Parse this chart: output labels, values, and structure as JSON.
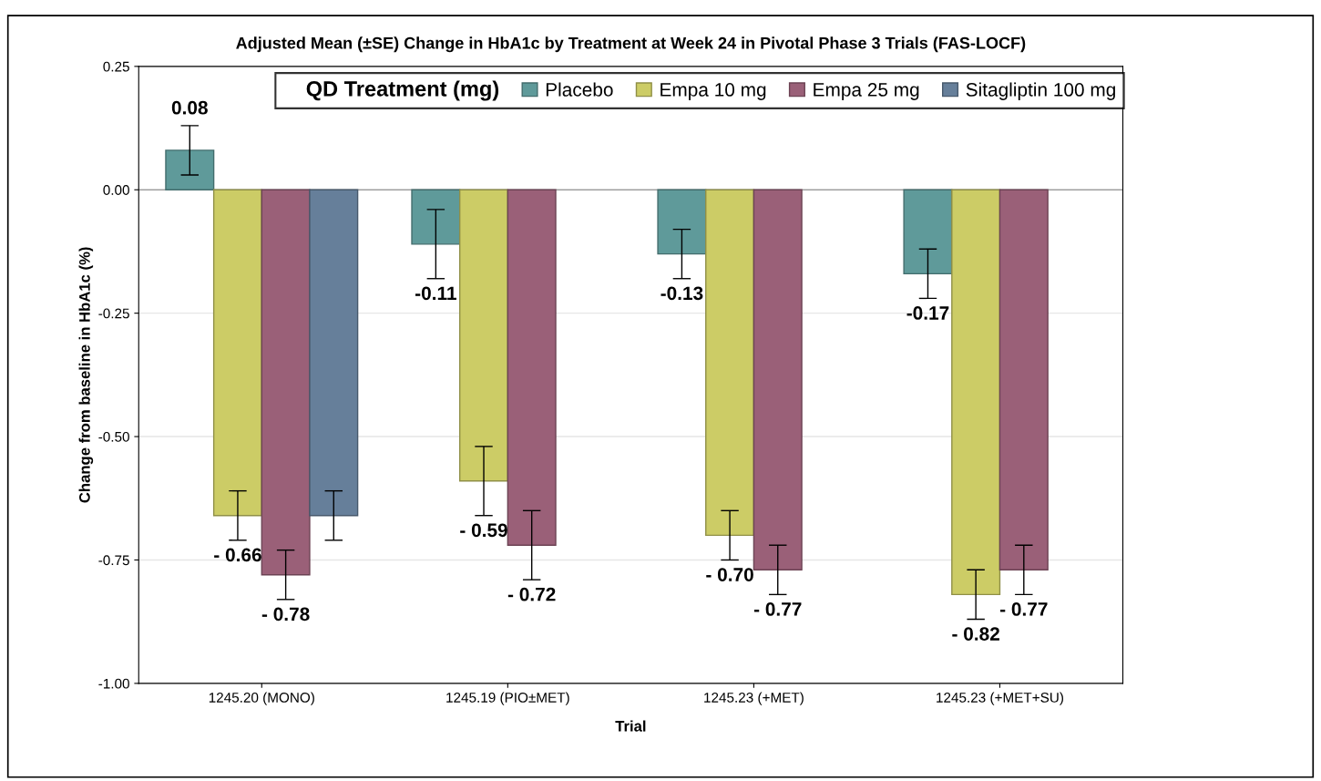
{
  "chart_data": {
    "type": "bar",
    "title": "Adjusted Mean (±SE) Change in HbA1c by Treatment at Week 24 in Pivotal Phase 3 Trials (FAS-LOCF)",
    "xlabel": "Trial",
    "ylabel": "Change from baseline in HbA1c (%)",
    "legend_title": "QD Treatment (mg)",
    "categories": [
      "1245.20 (MONO)",
      "1245.19 (PIO±MET)",
      "1245.23 (+MET)",
      "1245.23 (+MET+SU)"
    ],
    "series": [
      {
        "name": "Placebo",
        "color": "#5f9a9a",
        "values": [
          0.08,
          -0.11,
          -0.13,
          -0.17
        ],
        "errors": [
          0.05,
          0.07,
          0.05,
          0.05
        ],
        "value_labels": [
          "0.08",
          "-0.11",
          "-0.13",
          "-0.17"
        ]
      },
      {
        "name": "Empa 10 mg",
        "color": "#cccc66",
        "values": [
          -0.66,
          -0.59,
          -0.7,
          -0.82
        ],
        "errors": [
          0.05,
          0.07,
          0.05,
          0.05
        ],
        "value_labels": [
          "- 0.66",
          "- 0.59",
          "- 0.70",
          "- 0.82"
        ]
      },
      {
        "name": "Empa 25 mg",
        "color": "#9a6078",
        "values": [
          -0.78,
          -0.72,
          -0.77,
          -0.77
        ],
        "errors": [
          0.05,
          0.07,
          0.05,
          0.05
        ],
        "value_labels": [
          "- 0.78",
          "- 0.72",
          "- 0.77",
          "- 0.77"
        ]
      },
      {
        "name": "Sitagliptin 100 mg",
        "color": "#667f9a",
        "values": [
          -0.66,
          null,
          null,
          null
        ],
        "errors": [
          0.05,
          null,
          null,
          null
        ]
      }
    ],
    "ylim": [
      -1.0,
      0.25
    ],
    "yticks": [
      {
        "value": -1.0,
        "label": "-1.00"
      },
      {
        "value": -0.75,
        "label": "-0.75"
      },
      {
        "value": -0.5,
        "label": "-0.50"
      },
      {
        "value": -0.25,
        "label": "-0.25"
      },
      {
        "value": 0.0,
        "label": "0.00"
      },
      {
        "value": 0.25,
        "label": "0.25"
      }
    ],
    "ref_lines": [
      {
        "axis": "y",
        "value": 0,
        "color": "#808080"
      }
    ],
    "grid": "y",
    "legend": "top"
  }
}
